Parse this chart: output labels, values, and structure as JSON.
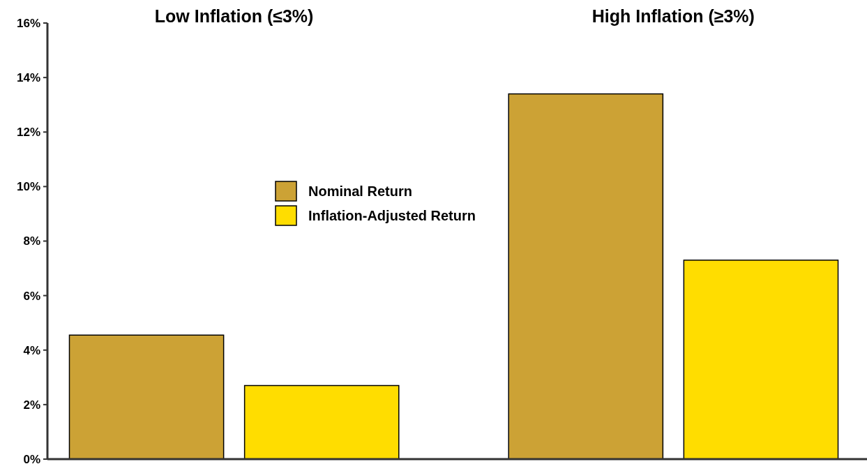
{
  "chart_data": {
    "type": "bar",
    "categories": [
      "Low Inflation (≤3%)",
      "High Inflation (≥3%)"
    ],
    "series": [
      {
        "name": "Nominal Return",
        "color": "#cca235",
        "values": [
          4.55,
          13.4
        ]
      },
      {
        "name": "Inflation-Adjusted Return",
        "color": "#ffdd00",
        "values": [
          2.7,
          7.3
        ]
      }
    ],
    "ylim": [
      0,
      16
    ],
    "yticks": [
      {
        "value": 0,
        "label": "0%"
      },
      {
        "value": 2,
        "label": "2%"
      },
      {
        "value": 4,
        "label": "4%"
      },
      {
        "value": 6,
        "label": "6%"
      },
      {
        "value": 8,
        "label": "8%"
      },
      {
        "value": 10,
        "label": "10%"
      },
      {
        "value": 12,
        "label": "12%"
      },
      {
        "value": 14,
        "label": "14%"
      },
      {
        "value": 16,
        "label": "16%"
      }
    ],
    "legend": "center",
    "grid": false
  }
}
